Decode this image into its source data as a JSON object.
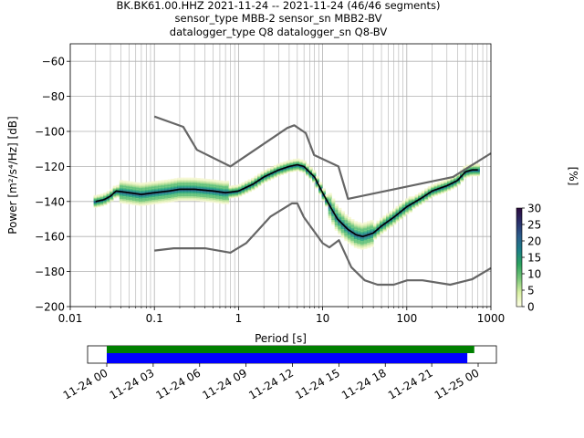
{
  "title_lines": [
    "BK.BK61.00.HHZ   2021-11-24 -- 2021-11-24  (46/46 segments)",
    "sensor_type MBB-2 sensor_sn MBB2-BV",
    "datalogger_type Q8 datalogger_sn Q8-BV"
  ],
  "colorbar": {
    "label": "[%]",
    "ticks": [
      "0",
      "5",
      "10",
      "15",
      "20",
      "25",
      "30"
    ],
    "range": [
      0,
      30
    ]
  },
  "timeline": {
    "ticks": [
      "11-24 00",
      "11-24 03",
      "11-24 06",
      "11-24 09",
      "11-24 12",
      "11-24 15",
      "11-24 18",
      "11-24 21",
      "11-25 00"
    ],
    "data_bar_hours": [
      0,
      23.75
    ],
    "used_bar_hours": [
      0,
      23.3
    ],
    "data_color": "#008000",
    "used_color": "#0000ff"
  },
  "chart_data": {
    "type": "line",
    "xlabel": "Period [s]",
    "ylabel": "Power [m²/s⁴/Hz] [dB]",
    "xscale": "log",
    "xlim": [
      0.01,
      1000
    ],
    "ylim": [
      -200,
      -50
    ],
    "x_ticks": [
      "0.01",
      "0.1",
      "1",
      "10",
      "100",
      "1000"
    ],
    "y_ticks": [
      "−200",
      "−180",
      "−160",
      "−140",
      "−120",
      "−100",
      "−80",
      "−60"
    ],
    "grid": true,
    "series": [
      {
        "role": "mode",
        "color": "#000000",
        "x": [
          0.02,
          0.025,
          0.03,
          0.035,
          0.05,
          0.07,
          0.1,
          0.15,
          0.2,
          0.3,
          0.5,
          0.7,
          1,
          1.5,
          2,
          3,
          4,
          5,
          6,
          8,
          10,
          12,
          15,
          20,
          25,
          30,
          40,
          50,
          70,
          100,
          150,
          200,
          300,
          400,
          500,
          600,
          700
        ],
        "y": [
          -140,
          -139,
          -137,
          -134,
          -135,
          -136,
          -135,
          -134,
          -133,
          -133,
          -134,
          -135,
          -134,
          -130,
          -126,
          -122,
          -120,
          -119,
          -120,
          -126,
          -135,
          -142,
          -150,
          -156,
          -159,
          -160,
          -158,
          -154,
          -149,
          -143,
          -138,
          -134,
          -131,
          -128,
          -123,
          -122,
          -122
        ]
      },
      {
        "role": "NHNM",
        "color": "#666666",
        "x": [
          0.1,
          0.22,
          0.32,
          0.8,
          3.8,
          4.6,
          6.3,
          7.9,
          15.4,
          20,
          354.8,
          1000
        ],
        "y": [
          -91.5,
          -97.4,
          -110.5,
          -120,
          -98,
          -96.5,
          -101,
          -113.5,
          -120,
          -138.5,
          -126,
          -112.5
        ]
      },
      {
        "role": "NLNM",
        "color": "#666666",
        "x": [
          0.1,
          0.17,
          0.4,
          0.8,
          1.24,
          2.4,
          4.3,
          5,
          6,
          10,
          12,
          15.6,
          21.9,
          31.6,
          45,
          70,
          101,
          154,
          328,
          600,
          1000
        ],
        "y": [
          -168,
          -166.7,
          -166.7,
          -169.2,
          -163.7,
          -148.6,
          -141.1,
          -141.1,
          -149,
          -163.8,
          -166.2,
          -162.1,
          -177.5,
          -185,
          -187.5,
          -187.5,
          -185,
          -185,
          -187.5,
          -184.4,
          -178
        ]
      }
    ]
  }
}
